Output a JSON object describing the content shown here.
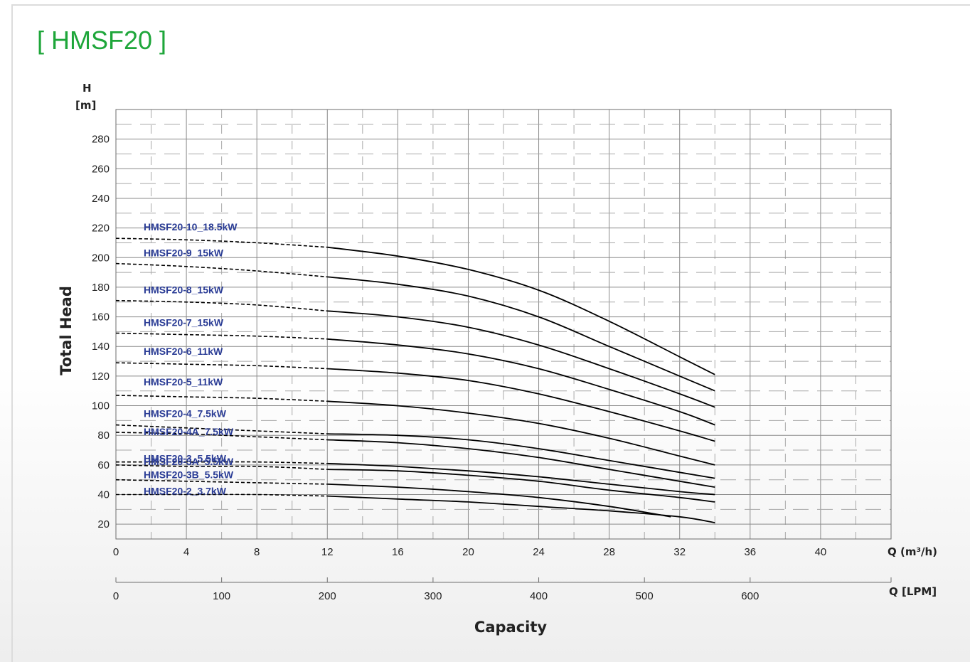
{
  "title": "[ HMSF20 ]",
  "chart_data": {
    "type": "line",
    "title": "[ HMSF20 ]",
    "ylabel": "Total Head",
    "y_unit_letter": "H",
    "y_unit": "[m]",
    "xlabel": "Capacity",
    "x_unit_primary": "Q (m³/h)",
    "x_unit_secondary": "Q [LPM]",
    "xlim": [
      0,
      44
    ],
    "ylim": [
      10,
      300
    ],
    "x_ticks": [
      0,
      4,
      8,
      12,
      16,
      20,
      24,
      28,
      32,
      36,
      40
    ],
    "y_ticks": [
      20,
      40,
      60,
      80,
      100,
      120,
      140,
      160,
      180,
      200,
      220,
      240,
      260,
      280
    ],
    "lpm_ticks": [
      0,
      100,
      200,
      300,
      400,
      500,
      600
    ],
    "grid": true,
    "dashed_until_x": 12,
    "series": [
      {
        "name": "HMSF20-10_18.5kW",
        "x": [
          0,
          4,
          8,
          12,
          16,
          20,
          24,
          28,
          32,
          34
        ],
        "y": [
          213,
          212,
          210,
          207,
          201,
          192,
          178,
          157,
          133,
          121
        ]
      },
      {
        "name": "HMSF20-9_15kW",
        "x": [
          0,
          4,
          8,
          12,
          16,
          20,
          24,
          28,
          32,
          34
        ],
        "y": [
          196,
          194,
          191,
          187,
          182,
          174,
          160,
          140,
          120,
          110
        ]
      },
      {
        "name": "HMSF20-8_15kW",
        "x": [
          0,
          4,
          8,
          12,
          16,
          20,
          24,
          28,
          32,
          34
        ],
        "y": [
          171,
          170,
          168,
          164,
          160,
          153,
          141,
          125,
          108,
          99
        ]
      },
      {
        "name": "HMSF20-7_15kW",
        "x": [
          0,
          4,
          8,
          12,
          16,
          20,
          24,
          28,
          32,
          34
        ],
        "y": [
          149,
          148,
          147,
          145,
          141,
          135,
          125,
          111,
          96,
          87
        ]
      },
      {
        "name": "HMSF20-6_11kW",
        "x": [
          0,
          4,
          8,
          12,
          16,
          20,
          24,
          28,
          32,
          34
        ],
        "y": [
          129,
          128,
          127,
          125,
          122,
          117,
          108,
          96,
          83,
          76
        ]
      },
      {
        "name": "HMSF20-5_11kW",
        "x": [
          0,
          4,
          8,
          12,
          16,
          20,
          24,
          28,
          32,
          34
        ],
        "y": [
          107,
          106,
          105,
          103,
          100,
          95,
          88,
          78,
          66,
          60
        ]
      },
      {
        "name": "HMSF20-4_7.5kW",
        "x": [
          0,
          4,
          8,
          12,
          16,
          20,
          24,
          28,
          32,
          34
        ],
        "y": [
          87,
          85,
          83,
          81,
          80,
          77,
          71,
          63,
          55,
          51
        ]
      },
      {
        "name": "HMSF20-4A_7.5kW",
        "x": [
          0,
          4,
          8,
          12,
          16,
          20,
          24,
          28,
          32,
          34
        ],
        "y": [
          82,
          81,
          79,
          77,
          75,
          71,
          65,
          57,
          49,
          45
        ]
      },
      {
        "name": "HMSF20-3_5.5kW",
        "x": [
          0,
          4,
          8,
          12,
          16,
          20,
          24,
          28,
          32,
          34
        ],
        "y": [
          62,
          62,
          62,
          61,
          59,
          56,
          52,
          47,
          42,
          40
        ]
      },
      {
        "name": "HMSF20-3A_5.5kW",
        "x": [
          0,
          4,
          8,
          12,
          16,
          20,
          24,
          28,
          32,
          34
        ],
        "y": [
          60,
          59,
          59,
          57,
          56,
          53,
          49,
          43,
          38,
          35
        ]
      },
      {
        "name": "HMSF20-3B_5.5kW",
        "x": [
          0,
          4,
          8,
          12,
          16,
          20,
          24,
          28,
          31.5
        ],
        "y": [
          50,
          49,
          48,
          47,
          45,
          42,
          38,
          32,
          25
        ]
      },
      {
        "name": "HMSF20-2_3.7kW",
        "x": [
          0,
          4,
          8,
          12,
          16,
          20,
          24,
          28,
          32,
          34
        ],
        "y": [
          40,
          40,
          40,
          39,
          37,
          35,
          32,
          29,
          25,
          21
        ]
      }
    ]
  }
}
